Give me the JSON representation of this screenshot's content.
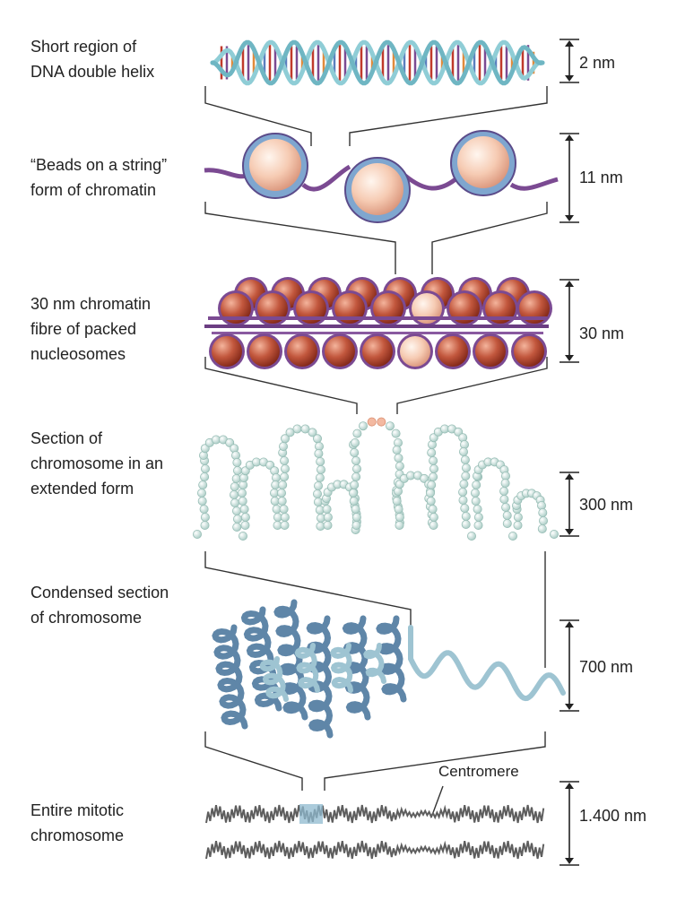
{
  "levels": [
    {
      "label_lines": [
        "Short region of",
        "DNA double helix"
      ],
      "size": "2 nm"
    },
    {
      "label_lines": [
        "“Beads on a string”",
        "form of chromatin"
      ],
      "size": "11 nm"
    },
    {
      "label_lines": [
        "30 nm chromatin",
        "fibre of packed",
        "nucleosomes"
      ],
      "size": "30 nm"
    },
    {
      "label_lines": [
        "Section of",
        "chromosome in an",
        "extended form"
      ],
      "size": "300 nm"
    },
    {
      "label_lines": [
        "Condensed section",
        "of chromosome"
      ],
      "size": "700 nm"
    },
    {
      "label_lines": [
        "Entire mitotic",
        "chromosome"
      ],
      "size": "1.400 nm"
    }
  ],
  "centromere_label": "Centromere",
  "colors": {
    "helix_backbone": "#8fcdd6",
    "histone_core": "#f6cbb3",
    "histone_rim": "#7fa6cf",
    "dna_wrap": "#7b4a92",
    "fibre_bead": "#c2573d",
    "extended_bead": "#cfe3df",
    "condensed_dark": "#5f86a8",
    "condensed_light": "#9ec4d2",
    "chromosome": "#5e5e5e",
    "connector": "#333333"
  }
}
